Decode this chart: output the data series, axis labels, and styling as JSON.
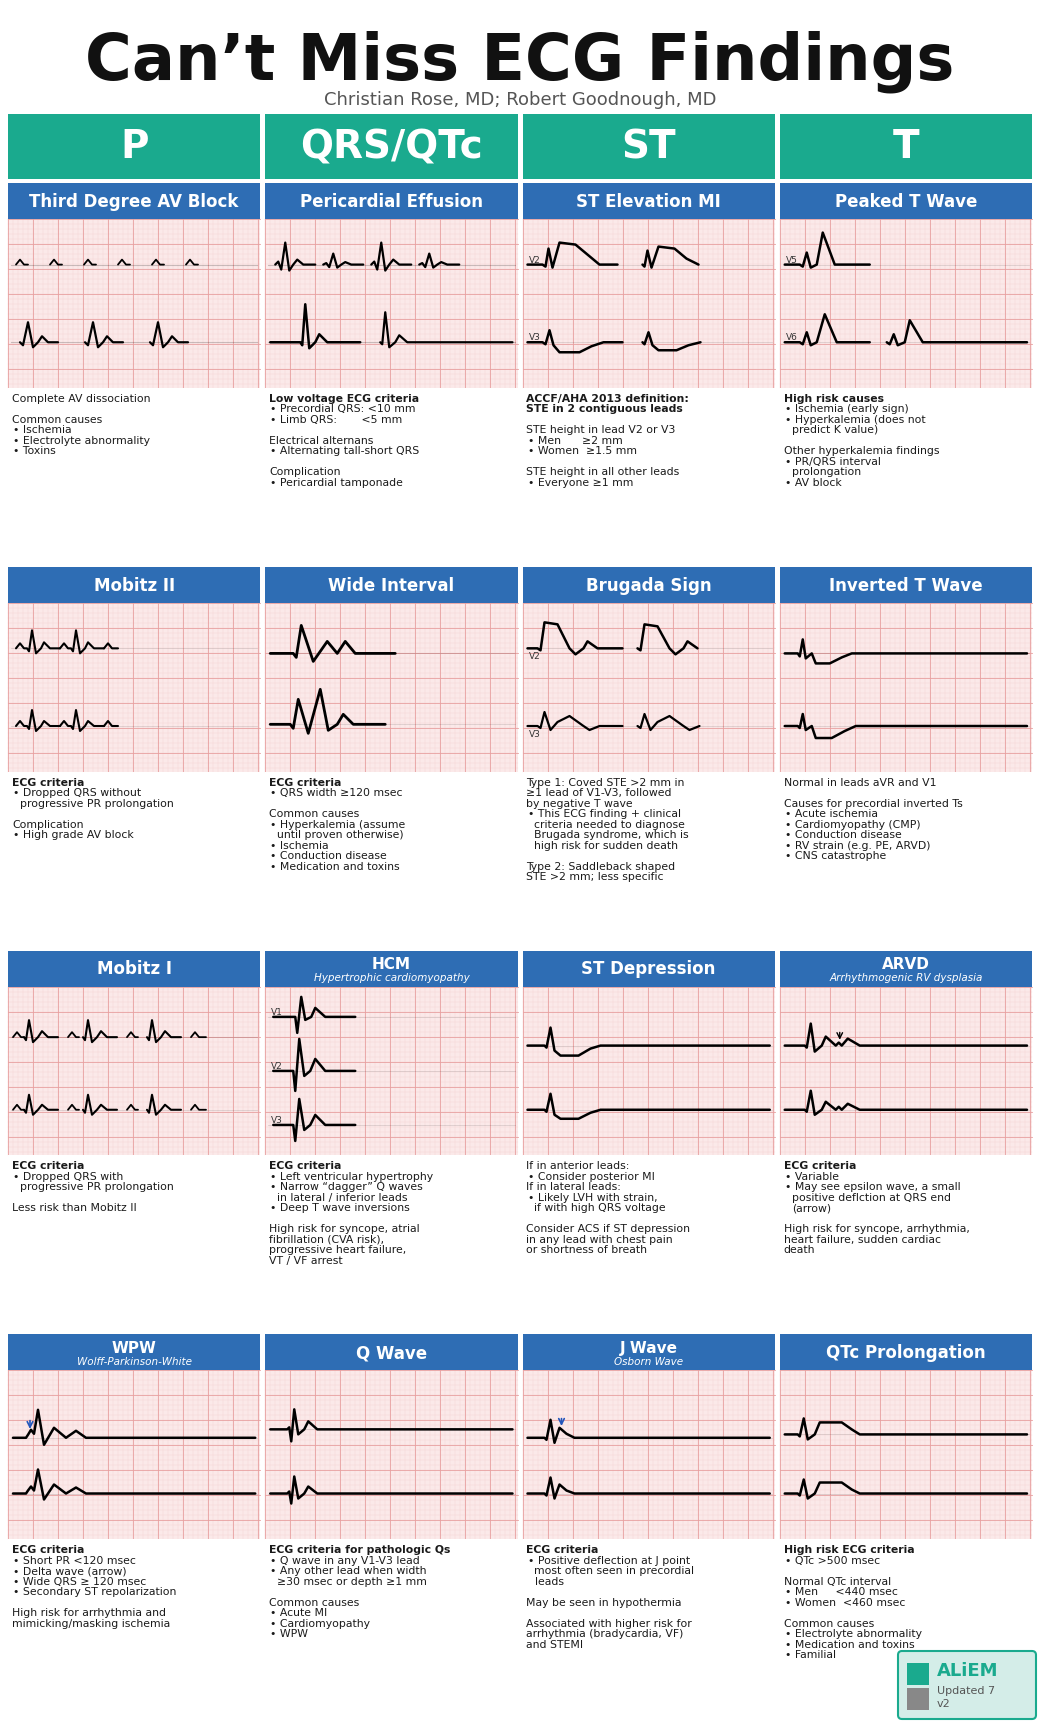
{
  "title": "Can’t Miss ECG Findings",
  "subtitle": "Christian Rose, MD; Robert Goodnough, MD",
  "bg_color": "#ffffff",
  "teal_color": "#1aaa8e",
  "blue_color": "#2e6db4",
  "text_color": "#1a1a1a",
  "ecg_bg": "#fbe9e9",
  "ecg_grid_major": "#e8a0a0",
  "ecg_grid_minor": "#f4d0d0",
  "row_headers": [
    "P",
    "QRS/QTc",
    "ST",
    "T"
  ],
  "rows": [
    {
      "cards": [
        {
          "title": "Third Degree AV Block",
          "ecg_type": "av_block_3",
          "text": "Complete AV dissociation\n\nCommon causes\n • Ischemia\n • Electrolyte abnormality\n • Toxins"
        },
        {
          "title": "Pericardial Effusion",
          "ecg_type": "pericardial",
          "text": "Low voltage ECG criteria\n • Precordial QRS: <10 mm\n • Limb QRS:       <5 mm\n\nElectrical alternans\n • Alternating tall-short QRS\n\nComplication\n • Pericardial tamponade"
        },
        {
          "title": "ST Elevation MI",
          "ecg_type": "stemi",
          "text": "ACCF/AHA 2013 definition:\nSTE in 2 contiguous leads\n\nSTE height in lead V2 or V3\n • Men      ≥2 mm\n • Women  ≥1.5 mm\n\nSTE height in all other leads\n • Everyone ≥1 mm"
        },
        {
          "title": "Peaked T Wave",
          "ecg_type": "peaked_t",
          "text": "High risk causes\n • Ischemia (early sign)\n • Hyperkalemia (does not\n   predict K value)\n\nOther hyperkalemia findings\n • PR/QRS interval\n   prolongation\n • AV block"
        }
      ]
    },
    {
      "cards": [
        {
          "title": "Mobitz II",
          "ecg_type": "mobitz2",
          "text": "ECG criteria\n • Dropped QRS without\n   progressive PR prolongation\n\nComplication\n • High grade AV block"
        },
        {
          "title": "Wide Interval",
          "ecg_type": "wide_interval",
          "text": "ECG criteria\n • QRS width ≥120 msec\n\nCommon causes\n • Hyperkalemia (assume\n   until proven otherwise)\n • Ischemia\n • Conduction disease\n • Medication and toxins"
        },
        {
          "title": "Brugada Sign",
          "ecg_type": "brugada",
          "text": "Type 1: Coved STE >2 mm in\n≥1 lead of V1-V3, followed\nby negative T wave\n• This ECG finding + clinical\n  criteria needed to diagnose\n  Brugada syndrome, which is\n  high risk for sudden death\n\nType 2: Saddleback shaped\nSTE >2 mm; less specific"
        },
        {
          "title": "Inverted T Wave",
          "ecg_type": "inverted_t",
          "text": "Normal in leads aVR and V1\n\nCauses for precordial inverted Ts\n • Acute ischemia\n • Cardiomyopathy (CMP)\n • Conduction disease\n • RV strain (e.g. PE, ARVD)\n • CNS catastrophe"
        }
      ]
    },
    {
      "cards": [
        {
          "title": "Mobitz I",
          "ecg_type": "mobitz1",
          "text": "ECG criteria\n • Dropped QRS with\n   progressive PR prolongation\n\nLess risk than Mobitz II"
        },
        {
          "title": "HCM\nHypertrophic cardiomyopathy",
          "ecg_type": "hcm",
          "text": "ECG criteria\n • Left ventricular hypertrophy\n • Narrow “dagger” Q waves\n   in lateral / inferior leads\n • Deep T wave inversions\n\nHigh risk for syncope, atrial\nfibrillation (CVA risk),\nprogressive heart failure,\nVT / VF arrest"
        },
        {
          "title": "ST Depression",
          "ecg_type": "st_depression",
          "text": "If in anterior leads:\n • Consider posterior MI\nIf in lateral leads:\n • Likely LVH with strain,\n   if with high QRS voltage\n\nConsider ACS if ST depression\nin any lead with chest pain\nor shortness of breath"
        },
        {
          "title": "ARVD\nArrhythmogenic RV dysplasia",
          "ecg_type": "arvd",
          "text": "ECG criteria\n • Variable\n • May see epsilon wave, a small\n   positive deflction at QRS end\n   (arrow)\n\nHigh risk for syncope, arrhythmia,\nheart failure, sudden cardiac\ndeath"
        }
      ]
    },
    {
      "cards": [
        {
          "title": "WPW\nWolff-Parkinson-White",
          "ecg_type": "wpw",
          "text": "ECG criteria\n • Short PR <120 msec\n • Delta wave (arrow)\n • Wide QRS ≥ 120 msec\n • Secondary ST repolarization\n\nHigh risk for arrhythmia and\nmimicking/masking ischemia"
        },
        {
          "title": "Q Wave",
          "ecg_type": "q_wave",
          "text": "ECG criteria for pathologic Qs\n • Q wave in any V1-V3 lead\n • Any other lead when width\n   ≥30 msec or depth ≥1 mm\n\nCommon causes\n • Acute MI\n • Cardiomyopathy\n • WPW"
        },
        {
          "title": "J Wave\nOsborn Wave",
          "ecg_type": "j_wave",
          "text": "ECG criteria\n • Positive deflection at J point\n   most often seen in precordial\n   leads\n\nMay be seen in hypothermia\n\nAssociated with higher risk for\narrhythmia (bradycardia, VF)\nand STEMI"
        },
        {
          "title": "QTc Prolongation",
          "ecg_type": "qtc",
          "text": "High risk ECG criteria\n • QTc >500 msec\n\nNormal QTc interval\n • Men     <440 msec\n • Women  <460 msec\n\nCommon causes\n • Electrolyte abnormality\n • Medication and toxins\n • Familial"
        }
      ]
    }
  ],
  "bold_starts": [
    "Low voltage ECG criteria",
    "ACCF/AHA 2013 definition:",
    "STE in 2 contiguous leads",
    "ECG criteria",
    "High risk ECG criteria",
    "High risk causes",
    "ECG criteria for pathologic Qs"
  ]
}
